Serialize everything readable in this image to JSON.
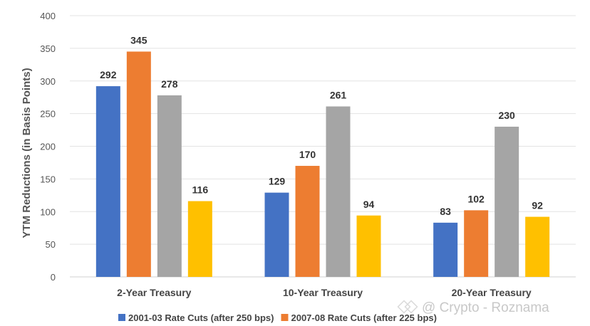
{
  "chart_data": {
    "type": "bar",
    "ylabel": "YTM Reductions (in Basis Points)",
    "xlabel": "",
    "ylim": [
      0,
      400
    ],
    "yticks": [
      0,
      50,
      100,
      150,
      200,
      250,
      300,
      350,
      400
    ],
    "grid": true,
    "legend_position": "bottom",
    "categories": [
      "2-Year Treasury",
      "10-Year Treasury",
      "20-Year Treasury"
    ],
    "series": [
      {
        "name": "2001-03 Rate Cuts (after 250 bps)",
        "color": "#4472C4",
        "values": [
          292,
          129,
          83
        ]
      },
      {
        "name": "2007-08 Rate Cuts (after 225 bps)",
        "color": "#ED7D31",
        "values": [
          345,
          170,
          102
        ]
      },
      {
        "color": "#A5A5A5",
        "values": [
          278,
          261,
          230
        ]
      },
      {
        "color": "#FFC000",
        "values": [
          116,
          94,
          92
        ]
      }
    ]
  },
  "watermark": "@ Crypto - Roznama"
}
